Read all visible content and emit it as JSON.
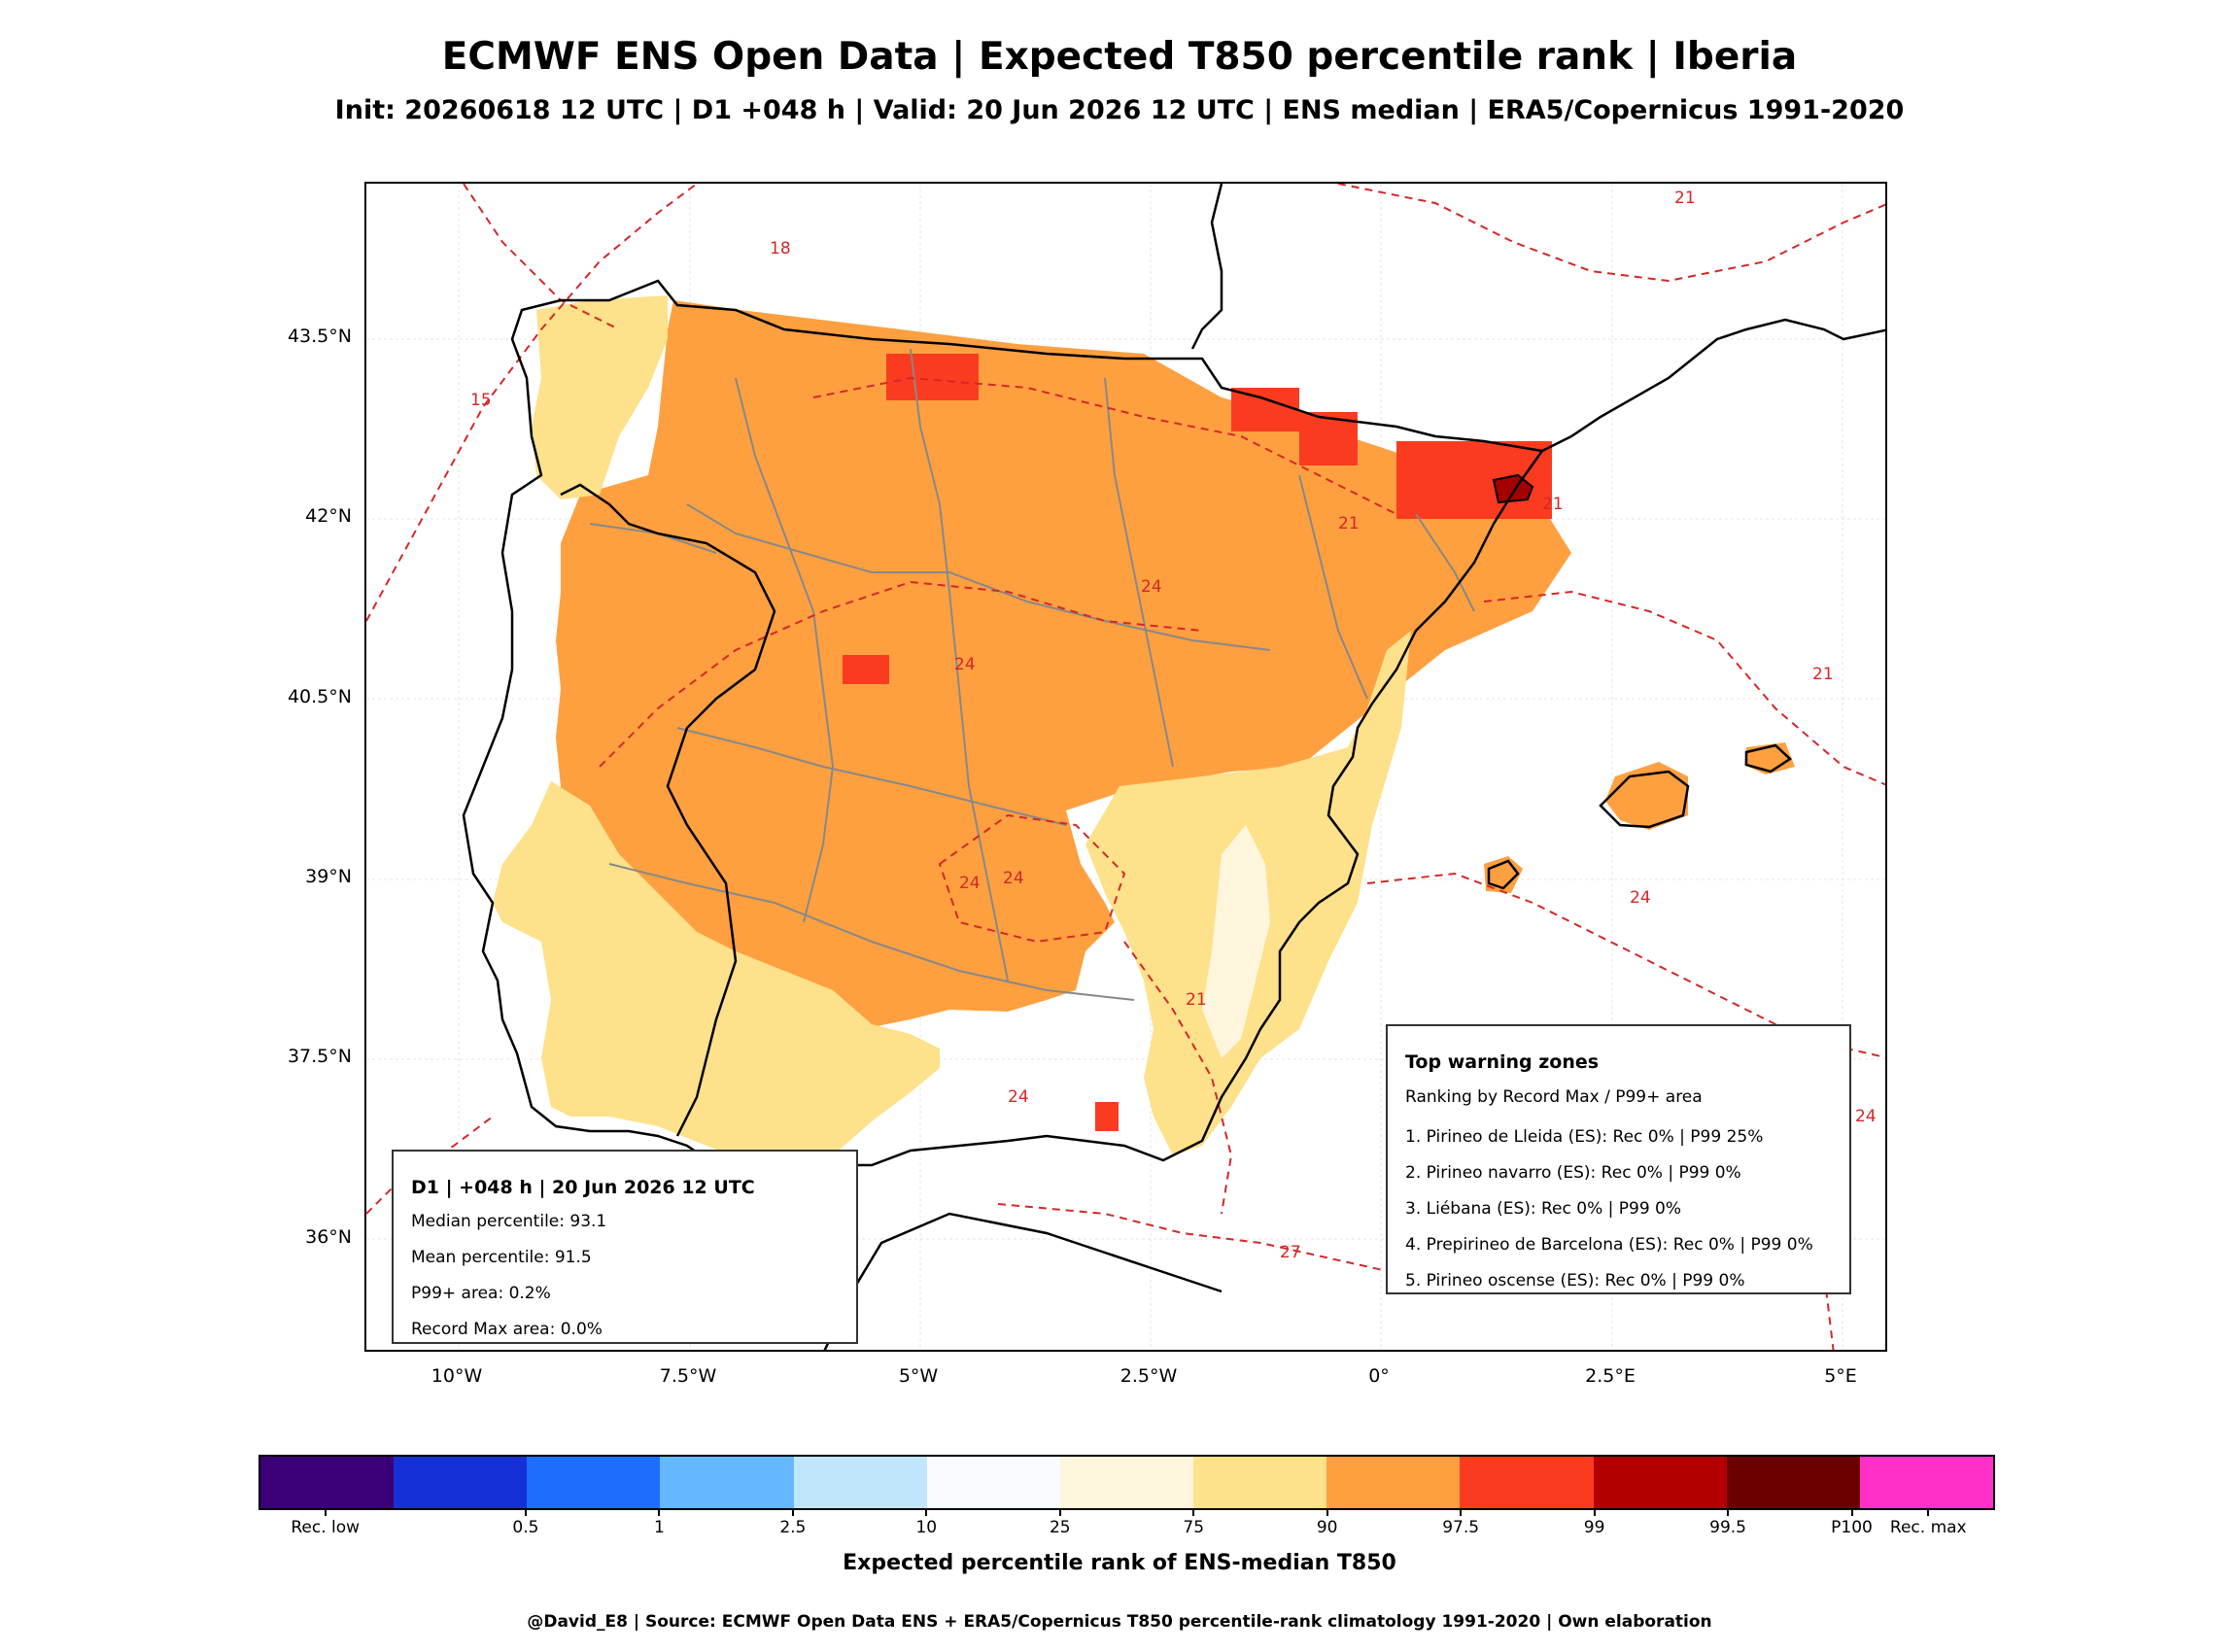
{
  "title": "ECMWF ENS Open Data | Expected T850 percentile rank | Iberia",
  "subtitle": "Init: 20260618 12 UTC | D1 +048 h | Valid: 20 Jun 2026 12 UTC | ENS median | ERA5/Copernicus 1991-2020",
  "map": {
    "lon_range": [
      -11,
      5.5
    ],
    "lat_range": [
      35.0,
      44.8
    ],
    "lat_ticks": [
      "43.5°N",
      "42°N",
      "40.5°N",
      "39°N",
      "37.5°N",
      "36°N"
    ],
    "lon_ticks": [
      "10°W",
      "7.5°W",
      "5°W",
      "2.5°W",
      "0°",
      "2.5°E",
      "5°E"
    ],
    "contour_labels": [
      "15",
      "18",
      "21",
      "21",
      "21",
      "21",
      "24",
      "24",
      "24",
      "24",
      "24",
      "24",
      "21",
      "24",
      "27"
    ],
    "colors": {
      "land_dominant": "#fea040",
      "south_east_band": "#fde18b",
      "pale_band": "#fef5dd",
      "red_hotspot": "#fb3b20",
      "dark_hotspot": "#a50000",
      "contour": "#d62728",
      "coast": "#000000",
      "admin": "#808080"
    }
  },
  "stats_box": {
    "title": "D1 | +048 h | 20 Jun 2026 12 UTC",
    "median": "Median percentile: 93.1",
    "mean": "Mean percentile: 91.5",
    "p99": "P99+ area: 0.2%",
    "record": "Record Max area: 0.0%"
  },
  "warning_box": {
    "title": "Top warning zones",
    "subtitle": "Ranking by Record Max / P99+ area",
    "items": [
      "1. Pirineo de Lleida (ES): Rec 0% | P99 25%",
      "2. Pirineo navarro (ES): Rec 0% | P99 0%",
      "3. Liébana (ES): Rec 0% | P99 0%",
      "4. Prepirineo de Barcelona (ES): Rec 0% | P99 0%",
      "5. Pirineo oscense (ES): Rec 0% | P99 0%"
    ]
  },
  "colorbar": {
    "colors": [
      "#3b0078",
      "#1530d6",
      "#1f6dff",
      "#65b7ff",
      "#c0e6fc",
      "#f8fbff",
      "#fef5dd",
      "#fde18b",
      "#fea040",
      "#fb3b20",
      "#b20000",
      "#6a0000",
      "#ff30c8"
    ],
    "tick_labels": [
      "Rec. low",
      "0.5",
      "1",
      "2.5",
      "10",
      "25",
      "75",
      "90",
      "97.5",
      "99",
      "99.5",
      "P100",
      "Rec. max"
    ],
    "label": "Expected percentile rank of ENS-median T850"
  },
  "footer": "@David_E8 | Source: ECMWF Open Data ENS + ERA5/Copernicus T850 percentile-rank climatology 1991-2020 | Own elaboration"
}
